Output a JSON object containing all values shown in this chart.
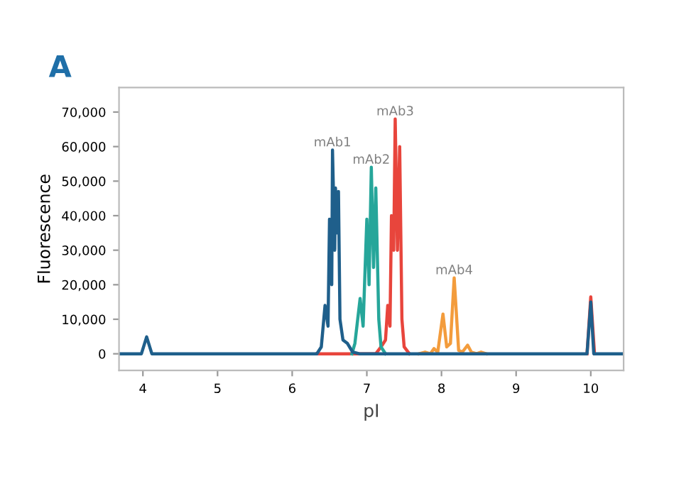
{
  "chart_data": {
    "type": "line",
    "title": "A",
    "xlabel": "pI",
    "ylabel": "Fluorescence",
    "xlim": [
      3.68,
      10.44
    ],
    "ylim": [
      -4800,
      77100
    ],
    "xticks": [
      4,
      5,
      6,
      7,
      8,
      9,
      10
    ],
    "yticks": [
      0,
      {
        "value": 10000,
        "label": "10,000"
      },
      {
        "value": 20000,
        "label": "20,000"
      },
      {
        "value": 30000,
        "label": "30,000"
      },
      {
        "value": 40000,
        "label": "40,000"
      },
      {
        "value": 50000,
        "label": "50,000"
      },
      {
        "value": 60000,
        "label": "60,000"
      },
      {
        "value": 70000,
        "label": "70,000"
      }
    ],
    "grid": false,
    "legend": false,
    "series": [
      {
        "name": "mAb3",
        "color": "#e8453c",
        "x": [
          6.33,
          7.12,
          7.19,
          7.25,
          7.28,
          7.31,
          7.33,
          7.36,
          7.38,
          7.41,
          7.44,
          7.47,
          7.5,
          7.57,
          8.0,
          9.95,
          10.0,
          10.05
        ],
        "values": [
          0,
          0,
          2000,
          4000,
          14000,
          8000,
          40000,
          30000,
          68000,
          30000,
          60000,
          10000,
          2000,
          0,
          null,
          0,
          16500,
          0
        ]
      },
      {
        "name": "mAb4",
        "color": "#f39c3c",
        "x": [
          7.7,
          7.78,
          7.85,
          7.9,
          7.95,
          8.02,
          8.07,
          8.12,
          8.17,
          8.23,
          8.28,
          8.35,
          8.4,
          8.47,
          8.53,
          8.6
        ],
        "values": [
          0,
          500,
          0,
          1500,
          500,
          11500,
          2000,
          3000,
          22000,
          1000,
          500,
          2500,
          500,
          0,
          500,
          0
        ]
      },
      {
        "name": "mAb2",
        "color": "#26a69a",
        "x": [
          6.8,
          6.84,
          6.91,
          6.95,
          7.0,
          7.03,
          7.06,
          7.09,
          7.12,
          7.16,
          7.19,
          7.25
        ],
        "values": [
          0,
          3000,
          16000,
          8000,
          39000,
          20000,
          54000,
          25000,
          48000,
          10000,
          2000,
          0
        ]
      },
      {
        "name": "mAb1",
        "color": "#1f5f8b",
        "x": [
          3.68,
          3.98,
          4.05,
          4.12,
          6.33,
          6.39,
          6.44,
          6.48,
          6.5,
          6.53,
          6.54,
          6.57,
          6.58,
          6.6,
          6.62,
          6.64,
          6.68,
          6.74,
          6.81,
          6.9,
          9.95,
          10.0,
          10.04,
          10.44
        ],
        "values": [
          0,
          0,
          4900,
          0,
          0,
          2000,
          14000,
          8000,
          39000,
          20000,
          59000,
          30000,
          48000,
          35000,
          47000,
          10000,
          4000,
          3000,
          500,
          0,
          0,
          15000,
          0,
          0
        ]
      }
    ]
  }
}
